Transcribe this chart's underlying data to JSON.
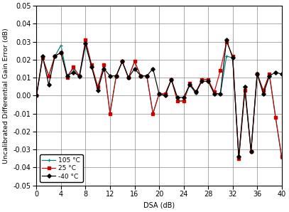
{
  "x": [
    0,
    1,
    2,
    3,
    4,
    5,
    6,
    7,
    8,
    9,
    10,
    11,
    12,
    13,
    14,
    15,
    16,
    17,
    18,
    19,
    20,
    21,
    22,
    23,
    24,
    25,
    26,
    27,
    28,
    29,
    30,
    31,
    32,
    33,
    34,
    35,
    36,
    37,
    38,
    39,
    40
  ],
  "y_m40": [
    0.0,
    0.022,
    0.006,
    0.022,
    0.024,
    0.011,
    0.013,
    0.011,
    0.029,
    0.016,
    0.003,
    0.015,
    0.011,
    0.011,
    0.019,
    0.01,
    0.015,
    0.011,
    0.011,
    0.015,
    0.001,
    0.0,
    0.009,
    -0.001,
    -0.001,
    0.006,
    0.002,
    0.008,
    0.008,
    0.001,
    0.001,
    0.031,
    0.021,
    -0.034,
    0.005,
    -0.031,
    0.012,
    0.001,
    0.011,
    0.013,
    0.012
  ],
  "y_25": [
    0.0,
    0.021,
    0.011,
    0.022,
    0.024,
    0.01,
    0.016,
    0.011,
    0.031,
    0.017,
    0.005,
    0.017,
    -0.01,
    0.011,
    0.019,
    0.01,
    0.019,
    0.011,
    0.011,
    -0.01,
    0.001,
    0.001,
    0.009,
    -0.003,
    -0.003,
    0.007,
    0.002,
    0.009,
    0.009,
    0.002,
    0.014,
    0.03,
    0.022,
    -0.035,
    0.003,
    -0.031,
    0.012,
    0.003,
    0.012,
    -0.012,
    -0.034
  ],
  "y_105": [
    0.0,
    0.021,
    0.011,
    0.022,
    0.028,
    0.011,
    0.015,
    0.01,
    0.028,
    0.016,
    0.004,
    0.016,
    -0.01,
    0.011,
    0.019,
    0.01,
    0.019,
    0.011,
    0.011,
    -0.01,
    0.001,
    0.001,
    0.009,
    -0.003,
    -0.003,
    0.006,
    0.001,
    0.009,
    0.009,
    0.001,
    0.001,
    0.022,
    0.021,
    -0.035,
    0.003,
    -0.031,
    0.013,
    0.002,
    0.011,
    -0.012,
    -0.035
  ],
  "xlim": [
    0,
    40
  ],
  "ylim": [
    -0.05,
    0.05
  ],
  "xticks": [
    0,
    4,
    8,
    12,
    16,
    20,
    24,
    28,
    32,
    36,
    40
  ],
  "yticks": [
    -0.05,
    -0.04,
    -0.03,
    -0.02,
    -0.01,
    0.0,
    0.01,
    0.02,
    0.03,
    0.04,
    0.05
  ],
  "xlabel": "DSA (dB)",
  "ylabel": "Uncalibrated Differential Gain Error (dB)",
  "color_m40": "#000000",
  "color_25": "#cc0000",
  "color_105": "#008080",
  "legend_labels": [
    "-40 °C",
    "25 °C",
    "105 °C"
  ],
  "bg_color": "#ffffff",
  "tick_fontsize": 7,
  "label_fontsize": 7,
  "ylabel_fontsize": 6.8
}
